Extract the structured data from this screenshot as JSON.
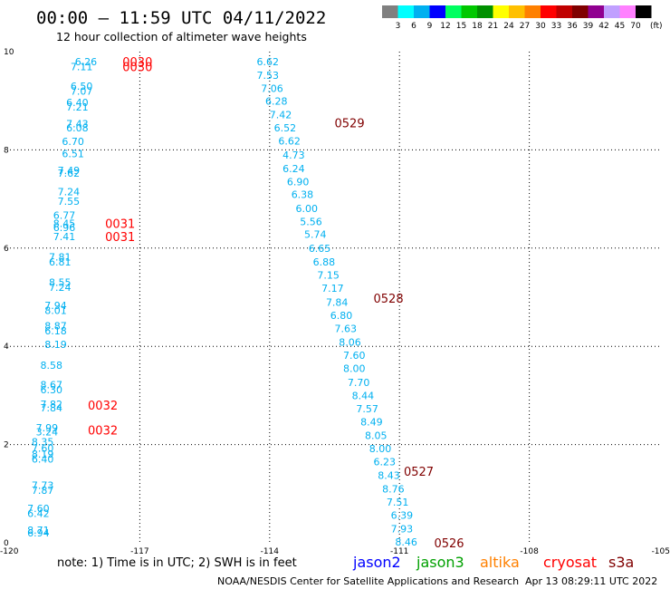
{
  "header": {
    "title": "00:00 – 11:59 UTC 04/11/2022",
    "subtitle": "12 hour collection of altimeter wave heights"
  },
  "colorbar": {
    "unit": "(ft)",
    "colors": [
      "#808080",
      "#00ffff",
      "#00b0f0",
      "#0000ff",
      "#00ff60",
      "#00c800",
      "#009000",
      "#ffff00",
      "#ffc000",
      "#ff8000",
      "#ff0000",
      "#c00000",
      "#800000",
      "#900090",
      "#c0a0ff",
      "#ff80ff",
      "#000000"
    ],
    "labels": [
      "3",
      "6",
      "9",
      "12",
      "15",
      "18",
      "21",
      "24",
      "27",
      "30",
      "33",
      "36",
      "39",
      "42",
      "45",
      "70"
    ]
  },
  "note": "note:  1) Time is in UTC;  2) SWH is in feet",
  "satellites": [
    {
      "name": "jason2",
      "color": "#0000ff"
    },
    {
      "name": "jason3",
      "color": "#00a000"
    },
    {
      "name": "altika",
      "color": "#ff8000"
    },
    {
      "name": "cryosat",
      "color": "#ff0000"
    },
    {
      "name": "s3a",
      "color": "#800000"
    }
  ],
  "footer": {
    "credit": "NOAA/NESDIS Center for Satellite Applications and Research",
    "timestamp": "Apr 13 08:29:11 UTC 2022"
  },
  "chart_data": {
    "type": "scatter",
    "xlim": [
      -120,
      -105
    ],
    "ylim": [
      0,
      10
    ],
    "x_ticks": [
      "-120",
      "-117",
      "-114",
      "-111",
      "-108",
      "-105"
    ],
    "y_ticks": [
      "0",
      "2",
      "4",
      "6",
      "8",
      "10"
    ],
    "grid": true,
    "value_color": "#00b0f0",
    "track_a": {
      "values": [
        [
          -118.5,
          9.8,
          "6.26"
        ],
        [
          -118.6,
          9.7,
          "7.11"
        ],
        [
          -118.6,
          9.3,
          "6.50"
        ],
        [
          -118.6,
          9.2,
          "7.07"
        ],
        [
          -118.7,
          8.97,
          "6.40"
        ],
        [
          -118.7,
          8.87,
          "7.21"
        ],
        [
          -118.7,
          8.53,
          "7.43"
        ],
        [
          -118.7,
          8.45,
          "6.08"
        ],
        [
          -118.8,
          8.17,
          "6.70"
        ],
        [
          -118.8,
          7.92,
          "6.51"
        ],
        [
          -118.9,
          7.58,
          "7.49"
        ],
        [
          -118.9,
          7.53,
          "7.62"
        ],
        [
          -118.9,
          7.15,
          "7.24"
        ],
        [
          -118.9,
          6.96,
          "7.55"
        ],
        [
          -119.0,
          6.67,
          "6.77"
        ],
        [
          -119.0,
          6.5,
          "8.45"
        ],
        [
          -119.0,
          6.42,
          "6.96"
        ],
        [
          -119.0,
          6.24,
          "7.41"
        ],
        [
          -119.1,
          5.82,
          "7.81"
        ],
        [
          -119.1,
          5.72,
          "6.81"
        ],
        [
          -119.1,
          5.3,
          "8.55"
        ],
        [
          -119.1,
          5.2,
          "7.24"
        ],
        [
          -119.2,
          4.83,
          "7.94"
        ],
        [
          -119.2,
          4.73,
          "8.01"
        ],
        [
          -119.2,
          4.42,
          "8.87"
        ],
        [
          -119.2,
          4.32,
          "6.18"
        ],
        [
          -119.2,
          4.04,
          "8.19"
        ],
        [
          -119.3,
          3.62,
          "8.58"
        ],
        [
          -119.3,
          3.22,
          "8.67"
        ],
        [
          -119.3,
          3.12,
          "6.30"
        ],
        [
          -119.3,
          2.82,
          "7.82"
        ],
        [
          -119.3,
          2.75,
          "7.84"
        ],
        [
          -119.4,
          2.34,
          "7.99"
        ],
        [
          -119.4,
          2.26,
          "3.24"
        ],
        [
          -119.5,
          2.06,
          "8.35"
        ],
        [
          -119.5,
          1.93,
          "7.60"
        ],
        [
          -119.5,
          1.81,
          "8.19"
        ],
        [
          -119.5,
          1.71,
          "6.40"
        ],
        [
          -119.5,
          1.17,
          "7.73"
        ],
        [
          -119.5,
          1.07,
          "7.87"
        ],
        [
          -119.6,
          0.7,
          "7.60"
        ],
        [
          -119.6,
          0.6,
          "6.42"
        ],
        [
          -119.6,
          0.26,
          "8.71"
        ],
        [
          -119.6,
          0.2,
          "6.94"
        ]
      ]
    },
    "track_b": {
      "values": [
        [
          -114.3,
          9.8,
          "6.62"
        ],
        [
          -114.3,
          9.52,
          "7.53"
        ],
        [
          -114.2,
          9.25,
          "7.06"
        ],
        [
          -114.1,
          8.99,
          "6.28"
        ],
        [
          -114.0,
          8.72,
          "7.42"
        ],
        [
          -113.9,
          8.45,
          "6.52"
        ],
        [
          -113.8,
          8.18,
          "6.62"
        ],
        [
          -113.7,
          7.9,
          "4.73"
        ],
        [
          -113.7,
          7.62,
          "6.24"
        ],
        [
          -113.6,
          7.35,
          "6.90"
        ],
        [
          -113.5,
          7.09,
          "6.38"
        ],
        [
          -113.4,
          6.81,
          "6.00"
        ],
        [
          -113.3,
          6.54,
          "5.56"
        ],
        [
          -113.2,
          6.28,
          "5.74"
        ],
        [
          -113.1,
          6.0,
          "6.65"
        ],
        [
          -113.0,
          5.72,
          "6.88"
        ],
        [
          -112.9,
          5.45,
          "7.15"
        ],
        [
          -112.8,
          5.18,
          "7.17"
        ],
        [
          -112.7,
          4.9,
          "7.84"
        ],
        [
          -112.6,
          4.63,
          "6.80"
        ],
        [
          -112.5,
          4.36,
          "7.63"
        ],
        [
          -112.4,
          4.09,
          "8.06"
        ],
        [
          -112.3,
          3.82,
          "7.60"
        ],
        [
          -112.3,
          3.55,
          "8.00"
        ],
        [
          -112.2,
          3.27,
          "7.70"
        ],
        [
          -112.1,
          3.0,
          "8.44"
        ],
        [
          -112.0,
          2.73,
          "7.57"
        ],
        [
          -111.9,
          2.46,
          "8.49"
        ],
        [
          -111.8,
          2.19,
          "8.05"
        ],
        [
          -111.7,
          1.92,
          "8.00"
        ],
        [
          -111.6,
          1.65,
          "6.23"
        ],
        [
          -111.5,
          1.37,
          "8.43"
        ],
        [
          -111.4,
          1.1,
          "8.76"
        ],
        [
          -111.3,
          0.83,
          "7.51"
        ],
        [
          -111.2,
          0.56,
          "6.39"
        ],
        [
          -111.2,
          0.29,
          "7.93"
        ],
        [
          -111.1,
          0.02,
          "8.46"
        ]
      ]
    },
    "time_labels": [
      {
        "x": -117.4,
        "y": 9.8,
        "text": "0030",
        "color": "#ff0000"
      },
      {
        "x": -117.4,
        "y": 9.7,
        "text": "0030",
        "color": "#ff0000"
      },
      {
        "x": -117.8,
        "y": 6.5,
        "text": "0031",
        "color": "#ff0000"
      },
      {
        "x": -117.8,
        "y": 6.24,
        "text": "0031",
        "color": "#ff0000"
      },
      {
        "x": -118.2,
        "y": 2.8,
        "text": "0032",
        "color": "#ff0000"
      },
      {
        "x": -118.2,
        "y": 2.3,
        "text": "0032",
        "color": "#ff0000"
      },
      {
        "x": -112.5,
        "y": 8.55,
        "text": "0529",
        "color": "#800000"
      },
      {
        "x": -111.6,
        "y": 4.98,
        "text": "0528",
        "color": "#800000"
      },
      {
        "x": -110.9,
        "y": 1.46,
        "text": "0527",
        "color": "#800000"
      },
      {
        "x": -110.2,
        "y": 0.0,
        "text": "0526",
        "color": "#800000"
      }
    ]
  }
}
